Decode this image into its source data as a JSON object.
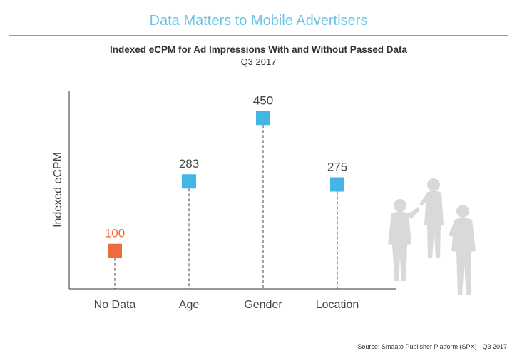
{
  "header": {
    "title": "Data Matters to Mobile Advertisers"
  },
  "chart_data": {
    "type": "scatter",
    "title": "Indexed eCPM for Ad Impressions With and Without Passed Data",
    "subtitle": "Q3 2017",
    "ylabel": "Indexed eCPM",
    "xlabel": "",
    "categories": [
      "No Data",
      "Age",
      "Gender",
      "Location"
    ],
    "values": [
      100,
      283,
      450,
      275
    ],
    "data_labels": [
      "100",
      "283",
      "450",
      "275"
    ],
    "ylim": [
      0,
      520
    ],
    "grid": false,
    "marker": "square",
    "drop_lines": "dashed",
    "colors": [
      "#ee6b3c",
      "#45b5e6",
      "#45b5e6",
      "#45b5e6"
    ]
  },
  "footer": {
    "source": "Source: Smaato Publisher Platform (SPX) - Q3 2017"
  }
}
